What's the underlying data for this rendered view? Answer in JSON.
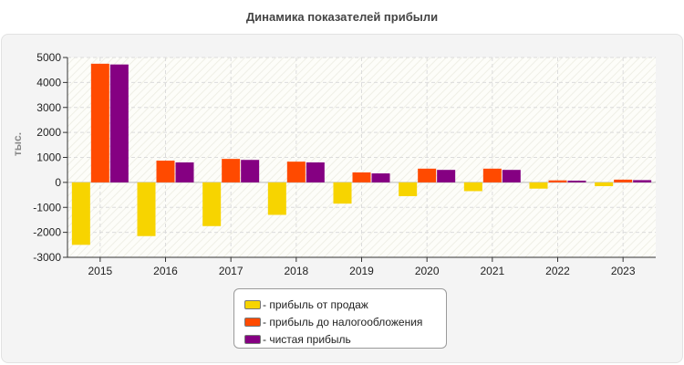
{
  "chart_data": {
    "type": "bar",
    "title": "Динамика показателей прибыли",
    "ylabel": "тыс.",
    "xlabel": "",
    "categories": [
      "2015",
      "2016",
      "2017",
      "2018",
      "2019",
      "2020",
      "2021",
      "2022",
      "2023"
    ],
    "series": [
      {
        "name": "- прибыль от продаж",
        "color": "#f7d400",
        "values": [
          -2500,
          -2150,
          -1750,
          -1300,
          -850,
          -550,
          -350,
          -250,
          -150
        ]
      },
      {
        "name": "- прибыль до налогообложения",
        "color": "#ff4a00",
        "values": [
          4750,
          870,
          940,
          830,
          400,
          550,
          550,
          80,
          110
        ]
      },
      {
        "name": "- чистая прибыль",
        "color": "#850082",
        "values": [
          4720,
          800,
          900,
          800,
          360,
          500,
          500,
          70,
          90
        ]
      }
    ],
    "ylim": [
      -3000,
      5000
    ],
    "yticks": [
      "5000",
      "4000",
      "3000",
      "2000",
      "1000",
      "0",
      "-1000",
      "-2000",
      "-3000"
    ],
    "grid": true,
    "legend_position": "bottom-center"
  }
}
